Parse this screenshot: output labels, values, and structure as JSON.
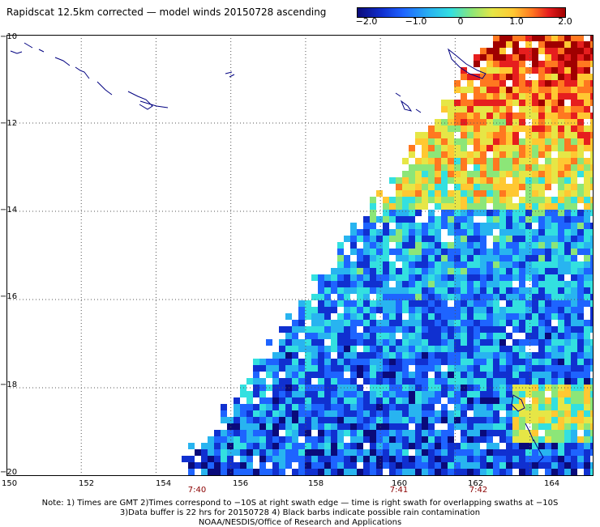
{
  "title": "Rapidscat 12.5km corrected — model winds 20150728 ascending",
  "colorbar": {
    "ticks": [
      {
        "label": "−2.0",
        "value": -2.0
      },
      {
        "label": "−1.0",
        "value": -1.0
      },
      {
        "label": "0",
        "value": 0
      },
      {
        "label": "1.0",
        "value": 1.0
      },
      {
        "label": "2.0",
        "value": 2.0
      }
    ],
    "min": -2.0,
    "max": 2.0
  },
  "map": {
    "lat_labels": [
      "−10",
      "−12",
      "−14",
      "−16",
      "−18",
      "−20"
    ],
    "lat_values": [
      -10,
      -12,
      -14,
      -16,
      -18,
      -20
    ],
    "lon_labels": [
      "150",
      "152",
      "154",
      "156",
      "158",
      "160",
      "162",
      "164"
    ],
    "lon_values": [
      150,
      152,
      154,
      156,
      158,
      160,
      162,
      164
    ],
    "lon_range": [
      150,
      165.7
    ],
    "lat_range": [
      -10,
      -20
    ],
    "swath_time_labels": [
      {
        "label": "7:40",
        "lon": 155
      },
      {
        "label": "7:41",
        "lon": 160
      },
      {
        "label": "7:42",
        "lon": 162
      }
    ]
  },
  "notes": {
    "line1": "Note: 1) Times are GMT 2)Times correspond to −10S at right swath edge — time is right swath for overlapping swaths at −10S",
    "line2": "3)Data buffer is 22 hrs for 20150728 4) Black barbs indicate possible rain contamination",
    "line3": "NOAA/NESDIS/Office of Research and Applications"
  },
  "colors": {
    "scale": [
      "#0a0a7a",
      "#1030d0",
      "#1e64ff",
      "#28b4f0",
      "#33e0e0",
      "#8ce678",
      "#e6e646",
      "#ffc832",
      "#ff7820",
      "#e61e1e",
      "#a00000"
    ],
    "coast": "#000080"
  }
}
